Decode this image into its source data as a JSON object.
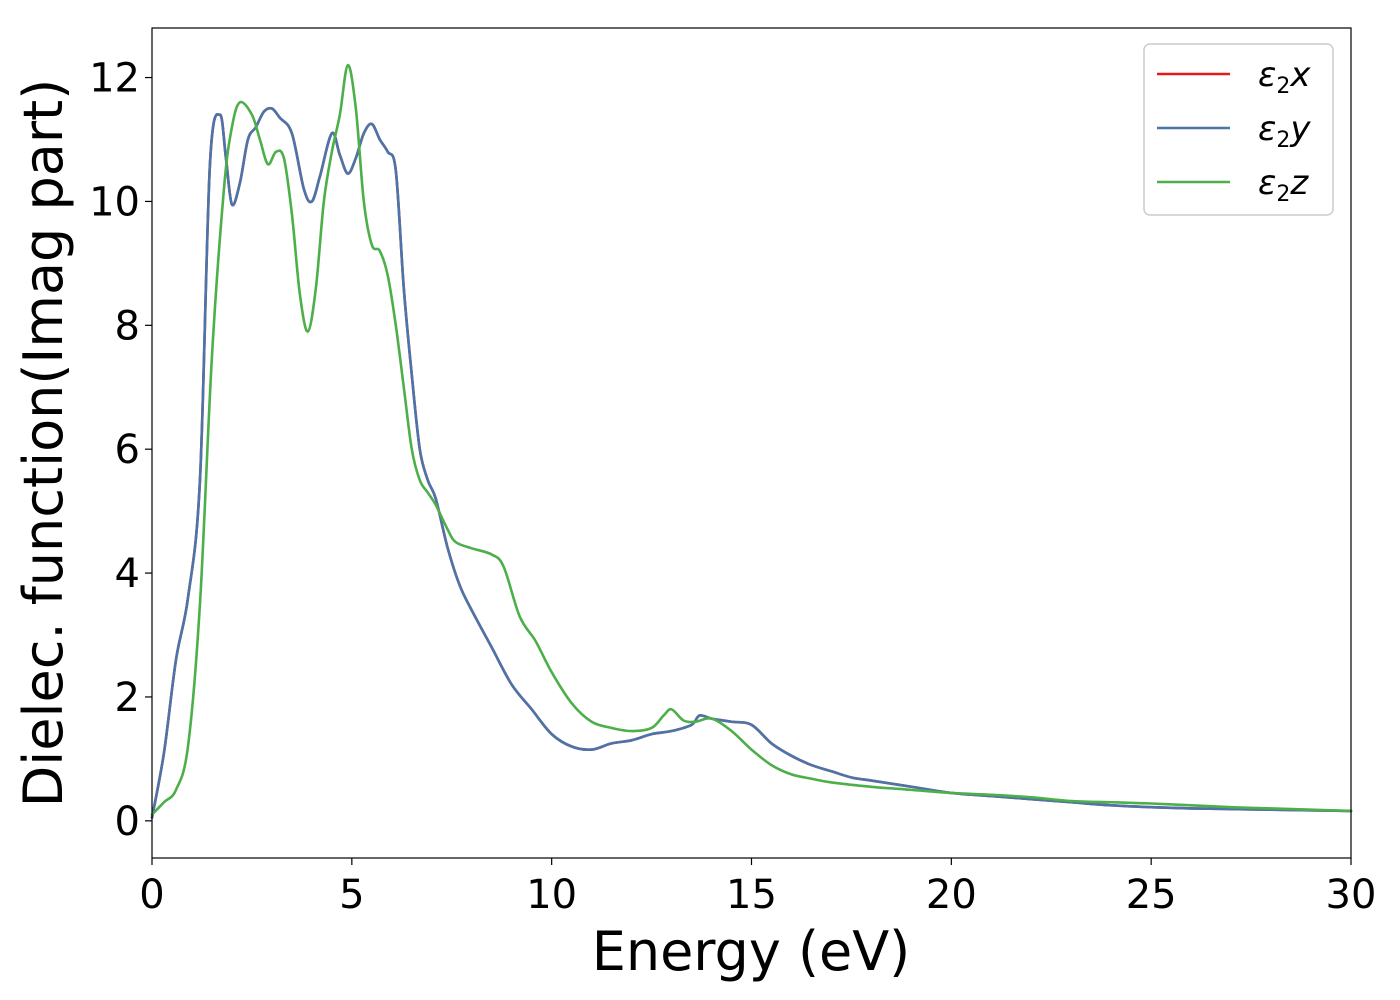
{
  "chart_data": {
    "type": "line",
    "xlabel": "Energy (eV)",
    "ylabel": "Dielec. function(Imag part)",
    "xlim": [
      0,
      30
    ],
    "ylim": [
      -0.6,
      12.8
    ],
    "xticks": [
      0,
      5,
      10,
      15,
      20,
      25,
      30
    ],
    "yticks": [
      0,
      2,
      4,
      6,
      8,
      10,
      12
    ],
    "grid": false,
    "legend_position": "top-right",
    "series": [
      {
        "name": "ε2x",
        "symbol": "ε",
        "sub": "2",
        "axis": "x",
        "color": "#e41a1c",
        "x": [
          0,
          0.3,
          0.6,
          0.9,
          1.2,
          1.45,
          1.7,
          1.85,
          2.0,
          2.2,
          2.4,
          2.6,
          2.8,
          3.0,
          3.2,
          3.5,
          3.8,
          4.0,
          4.2,
          4.5,
          4.7,
          4.9,
          5.1,
          5.3,
          5.5,
          5.7,
          5.9,
          6.1,
          6.3,
          6.5,
          6.7,
          6.9,
          7.1,
          7.4,
          7.7,
          8.0,
          8.5,
          9.0,
          9.5,
          10.0,
          10.5,
          11.0,
          11.5,
          12.0,
          12.5,
          13.0,
          13.5,
          13.7,
          14.0,
          14.5,
          15.0,
          15.5,
          16.0,
          16.5,
          17.0,
          17.5,
          18.0,
          19.0,
          20.0,
          21.0,
          22.0,
          23.0,
          24.0,
          25.0,
          26.0,
          27.0,
          28.0,
          29.0,
          30.0
        ],
        "y": [
          0.05,
          1.1,
          2.6,
          3.6,
          5.5,
          10.6,
          11.4,
          10.7,
          9.95,
          10.3,
          11.0,
          11.2,
          11.45,
          11.5,
          11.35,
          11.1,
          10.2,
          10.0,
          10.4,
          11.1,
          10.75,
          10.45,
          10.7,
          11.1,
          11.25,
          11.0,
          10.8,
          10.5,
          8.6,
          7.2,
          6.0,
          5.5,
          5.2,
          4.4,
          3.8,
          3.4,
          2.8,
          2.2,
          1.8,
          1.4,
          1.2,
          1.15,
          1.25,
          1.3,
          1.4,
          1.45,
          1.55,
          1.7,
          1.65,
          1.6,
          1.55,
          1.25,
          1.05,
          0.9,
          0.8,
          0.7,
          0.65,
          0.55,
          0.45,
          0.4,
          0.35,
          0.3,
          0.25,
          0.22,
          0.2,
          0.19,
          0.18,
          0.17,
          0.16
        ]
      },
      {
        "name": "ε2y",
        "symbol": "ε",
        "sub": "2",
        "axis": "y",
        "color": "#4a75aa",
        "x": [
          0,
          0.3,
          0.6,
          0.9,
          1.2,
          1.45,
          1.7,
          1.85,
          2.0,
          2.2,
          2.4,
          2.6,
          2.8,
          3.0,
          3.2,
          3.5,
          3.8,
          4.0,
          4.2,
          4.5,
          4.7,
          4.9,
          5.1,
          5.3,
          5.5,
          5.7,
          5.9,
          6.1,
          6.3,
          6.5,
          6.7,
          6.9,
          7.1,
          7.4,
          7.7,
          8.0,
          8.5,
          9.0,
          9.5,
          10.0,
          10.5,
          11.0,
          11.5,
          12.0,
          12.5,
          13.0,
          13.5,
          13.7,
          14.0,
          14.5,
          15.0,
          15.5,
          16.0,
          16.5,
          17.0,
          17.5,
          18.0,
          19.0,
          20.0,
          21.0,
          22.0,
          23.0,
          24.0,
          25.0,
          26.0,
          27.0,
          28.0,
          29.0,
          30.0
        ],
        "y": [
          0.05,
          1.1,
          2.6,
          3.6,
          5.5,
          10.6,
          11.4,
          10.7,
          9.95,
          10.3,
          11.0,
          11.2,
          11.45,
          11.5,
          11.35,
          11.1,
          10.2,
          10.0,
          10.4,
          11.1,
          10.75,
          10.45,
          10.7,
          11.1,
          11.25,
          11.0,
          10.8,
          10.5,
          8.6,
          7.2,
          6.0,
          5.5,
          5.2,
          4.4,
          3.8,
          3.4,
          2.8,
          2.2,
          1.8,
          1.4,
          1.2,
          1.15,
          1.25,
          1.3,
          1.4,
          1.45,
          1.55,
          1.7,
          1.65,
          1.6,
          1.55,
          1.25,
          1.05,
          0.9,
          0.8,
          0.7,
          0.65,
          0.55,
          0.45,
          0.4,
          0.35,
          0.3,
          0.25,
          0.22,
          0.2,
          0.19,
          0.18,
          0.17,
          0.16
        ]
      },
      {
        "name": "ε2z",
        "symbol": "ε",
        "sub": "2",
        "axis": "z",
        "color": "#4daf4a",
        "x": [
          0,
          0.3,
          0.6,
          0.9,
          1.2,
          1.5,
          1.8,
          2.0,
          2.2,
          2.5,
          2.7,
          2.9,
          3.1,
          3.3,
          3.5,
          3.7,
          3.9,
          4.1,
          4.3,
          4.5,
          4.7,
          4.9,
          5.1,
          5.3,
          5.5,
          5.7,
          5.9,
          6.1,
          6.3,
          6.5,
          6.7,
          6.9,
          7.1,
          7.4,
          7.6,
          8.0,
          8.5,
          8.8,
          9.2,
          9.6,
          10.0,
          10.5,
          11.0,
          11.5,
          12.0,
          12.5,
          12.8,
          13.0,
          13.3,
          13.6,
          14.0,
          14.5,
          15.0,
          15.5,
          16.0,
          16.5,
          17.0,
          18.0,
          19.0,
          20.0,
          21.0,
          22.0,
          23.0,
          24.0,
          25.0,
          26.0,
          27.0,
          28.0,
          29.0,
          30.0
        ],
        "y": [
          0.1,
          0.3,
          0.5,
          1.2,
          3.5,
          7.5,
          10.2,
          11.2,
          11.6,
          11.4,
          11.0,
          10.6,
          10.8,
          10.7,
          9.8,
          8.5,
          7.9,
          8.6,
          10.0,
          10.8,
          11.4,
          12.2,
          11.5,
          10.0,
          9.3,
          9.2,
          8.8,
          8.0,
          7.0,
          6.0,
          5.5,
          5.3,
          5.1,
          4.7,
          4.5,
          4.4,
          4.3,
          4.1,
          3.3,
          2.9,
          2.4,
          1.9,
          1.6,
          1.5,
          1.45,
          1.5,
          1.7,
          1.8,
          1.62,
          1.6,
          1.65,
          1.45,
          1.15,
          0.9,
          0.75,
          0.68,
          0.62,
          0.55,
          0.5,
          0.45,
          0.42,
          0.38,
          0.32,
          0.3,
          0.28,
          0.25,
          0.22,
          0.2,
          0.18,
          0.16
        ]
      }
    ]
  }
}
